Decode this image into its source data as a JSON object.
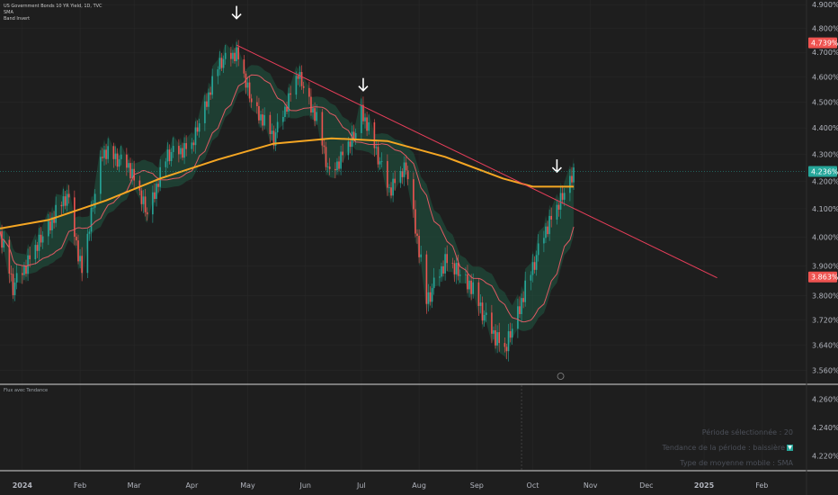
{
  "legend": {
    "symbol": "US Government Bonds 10 YR Yield, 1D, TVC",
    "line2": "SMA",
    "line3": "Band Invert"
  },
  "sub_pane": {
    "title": "Flux avec Tendance",
    "period_text": "Période sélectionnée : 20",
    "trend_text": "Tendance de la période : baissière",
    "trend_badge": "▼",
    "ma_type_text": "Type de moyenne mobile : SMA"
  },
  "colors": {
    "background": "#1e1e1e",
    "bull": "#26a69a",
    "bear": "#ef5350",
    "band": "#1f5a44",
    "sma_long": "#f5a623",
    "sma_short": "#e05a63",
    "trendline": "#e83e5a",
    "grid": "#2a2a2a"
  },
  "chart_data": {
    "type": "candlestick",
    "title": "US Government Bonds 10 YR Yield, 1D, TVC",
    "x_ticks": [
      {
        "label": "2024",
        "date": "2024-01-01"
      },
      {
        "label": "Feb",
        "date": "2024-02-01"
      },
      {
        "label": "Mar",
        "date": "2024-03-01"
      },
      {
        "label": "Apr",
        "date": "2024-04-01"
      },
      {
        "label": "May",
        "date": "2024-05-01"
      },
      {
        "label": "Jun",
        "date": "2024-06-01"
      },
      {
        "label": "Jul",
        "date": "2024-07-01"
      },
      {
        "label": "Aug",
        "date": "2024-08-01"
      },
      {
        "label": "Sep",
        "date": "2024-09-01"
      },
      {
        "label": "Oct",
        "date": "2024-10-01"
      },
      {
        "label": "Nov",
        "date": "2024-11-01"
      },
      {
        "label": "Dec",
        "date": "2024-12-01"
      },
      {
        "label": "2025",
        "date": "2025-01-01"
      },
      {
        "label": "Feb",
        "date": "2025-02-01"
      }
    ],
    "x_range": [
      "2023-12-20",
      "2025-02-25"
    ],
    "y_ticks": [
      "4.900%",
      "4.800%",
      "4.700%",
      "4.600%",
      "4.500%",
      "4.400%",
      "4.300%",
      "4.200%",
      "4.100%",
      "4.000%",
      "3.900%",
      "3.800%",
      "3.720%",
      "3.640%",
      "3.560%"
    ],
    "ylim": [
      3.52,
      4.92
    ],
    "scale": "log",
    "sub_y_ticks": [
      "4.260%",
      "4.240%",
      "4.220%"
    ],
    "price_labels": [
      {
        "text": "4.739%",
        "value": 4.739,
        "kind": "bear"
      },
      {
        "text": "4.236%",
        "value": 4.236,
        "kind": "bull"
      },
      {
        "text": "3.863%",
        "value": 3.863,
        "kind": "bear"
      }
    ],
    "key_points": [
      {
        "date": "2023-12-20",
        "value": 4.01
      },
      {
        "date": "2023-12-27",
        "value": 3.83
      },
      {
        "date": "2024-01-10",
        "value": 3.98
      },
      {
        "date": "2024-01-25",
        "value": 4.15
      },
      {
        "date": "2024-02-02",
        "value": 3.88
      },
      {
        "date": "2024-02-13",
        "value": 4.31
      },
      {
        "date": "2024-02-27",
        "value": 4.26
      },
      {
        "date": "2024-03-08",
        "value": 4.08
      },
      {
        "date": "2024-03-19",
        "value": 4.3
      },
      {
        "date": "2024-04-01",
        "value": 4.33
      },
      {
        "date": "2024-04-16",
        "value": 4.66
      },
      {
        "date": "2024-04-25",
        "value": 4.7
      },
      {
        "date": "2024-05-03",
        "value": 4.5
      },
      {
        "date": "2024-05-15",
        "value": 4.36
      },
      {
        "date": "2024-05-28",
        "value": 4.61
      },
      {
        "date": "2024-06-07",
        "value": 4.43
      },
      {
        "date": "2024-06-14",
        "value": 4.22
      },
      {
        "date": "2024-06-28",
        "value": 4.38
      },
      {
        "date": "2024-07-01",
        "value": 4.47
      },
      {
        "date": "2024-07-16",
        "value": 4.17
      },
      {
        "date": "2024-07-25",
        "value": 4.25
      },
      {
        "date": "2024-08-05",
        "value": 3.78
      },
      {
        "date": "2024-08-15",
        "value": 3.92
      },
      {
        "date": "2024-08-28",
        "value": 3.84
      },
      {
        "date": "2024-09-06",
        "value": 3.72
      },
      {
        "date": "2024-09-16",
        "value": 3.62
      },
      {
        "date": "2024-09-26",
        "value": 3.8
      },
      {
        "date": "2024-10-08",
        "value": 4.03
      },
      {
        "date": "2024-10-14",
        "value": 4.1
      },
      {
        "date": "2024-10-21",
        "value": 4.2
      },
      {
        "date": "2024-10-23",
        "value": 4.24
      }
    ],
    "sma_long": [
      {
        "date": "2023-12-20",
        "value": 4.03
      },
      {
        "date": "2024-01-15",
        "value": 4.06
      },
      {
        "date": "2024-02-15",
        "value": 4.13
      },
      {
        "date": "2024-03-15",
        "value": 4.21
      },
      {
        "date": "2024-04-15",
        "value": 4.28
      },
      {
        "date": "2024-05-15",
        "value": 4.34
      },
      {
        "date": "2024-06-15",
        "value": 4.36
      },
      {
        "date": "2024-07-15",
        "value": 4.35
      },
      {
        "date": "2024-08-15",
        "value": 4.29
      },
      {
        "date": "2024-09-15",
        "value": 4.21
      },
      {
        "date": "2024-10-01",
        "value": 4.18
      },
      {
        "date": "2024-10-23",
        "value": 4.18
      }
    ],
    "trendline": [
      {
        "date": "2024-04-25",
        "value": 4.73
      },
      {
        "date": "2025-01-08",
        "value": 3.86
      }
    ],
    "arrows": [
      "2024-04-25",
      "2024-07-02",
      "2024-10-14"
    ]
  }
}
